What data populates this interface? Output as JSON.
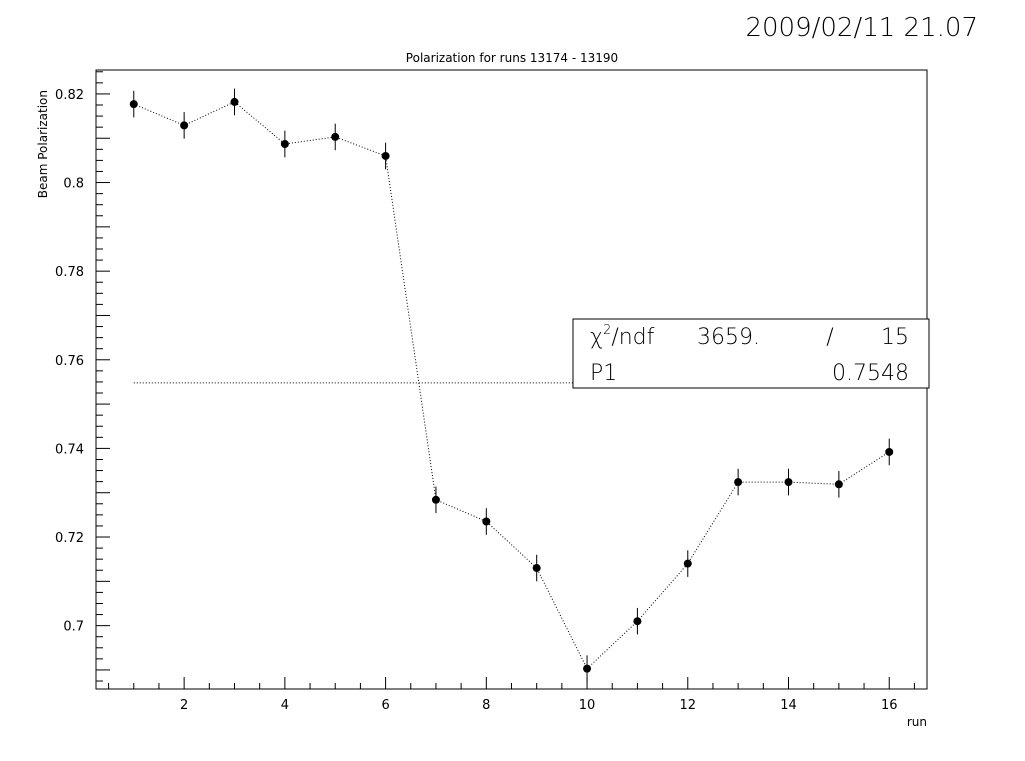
{
  "header": {
    "timestamp": "2009/02/11  21.07"
  },
  "chart_data": {
    "type": "scatter",
    "title": "Polarization for runs 13174 - 13190",
    "xlabel": "run",
    "ylabel": "Beam Polarization",
    "xlim": [
      0.25,
      16.75
    ],
    "ylim": [
      0.6857,
      0.8254
    ],
    "x_ticks": [
      2,
      4,
      6,
      8,
      10,
      12,
      14,
      16
    ],
    "y_ticks": [
      0.7,
      0.72,
      0.74,
      0.76,
      0.78,
      0.8,
      0.82
    ],
    "y_tick_labels": [
      "0.7",
      "0.72",
      "0.74",
      "0.76",
      "0.78",
      "0.8",
      "0.82"
    ],
    "grid": false,
    "series": [
      {
        "style": "points with error bars, dotted connecting line",
        "x": [
          1,
          2,
          3,
          4,
          5,
          6,
          7,
          8,
          9,
          10,
          11,
          12,
          13,
          14,
          15,
          16
        ],
        "y": [
          0.8177,
          0.8129,
          0.8182,
          0.8087,
          0.8103,
          0.806,
          0.7284,
          0.7235,
          0.713,
          0.6903,
          0.701,
          0.714,
          0.7324,
          0.7324,
          0.7319,
          0.7392
        ],
        "yerr": [
          0.003,
          0.003,
          0.003,
          0.003,
          0.003,
          0.003,
          0.003,
          0.003,
          0.003,
          0.003,
          0.003,
          0.003,
          0.003,
          0.003,
          0.003,
          0.003
        ]
      }
    ],
    "fit": {
      "type": "constant",
      "value": 0.7548,
      "x_range": [
        1,
        16
      ],
      "style": "dotted"
    },
    "stats_box": {
      "row1_label_pre": "χ",
      "row1_label_sup": "2",
      "row1_label_post": "/ndf",
      "row1_value": "3659.",
      "row1_sep": "/",
      "row1_ndf": "15",
      "row2_label": "P1",
      "row2_value": "0.7548"
    }
  }
}
